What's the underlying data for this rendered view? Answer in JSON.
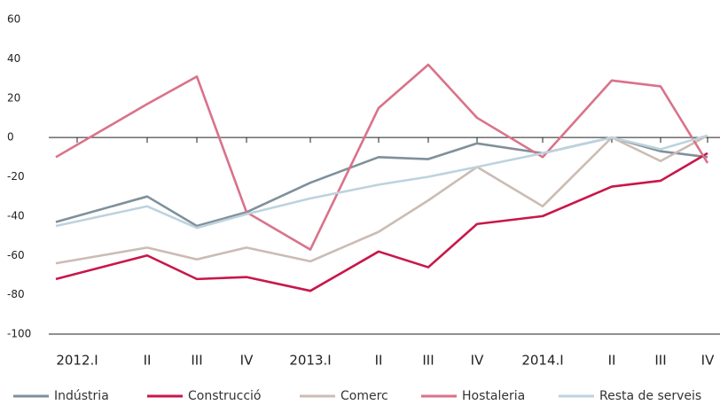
{
  "chart_data": {
    "type": "line",
    "categories": [
      "2012.I",
      "II",
      "III",
      "IV",
      "2013.I",
      "II",
      "III",
      "IV",
      "2014.I",
      "II",
      "III",
      "IV"
    ],
    "series": [
      {
        "name": "Indústria",
        "color": "#7f909b",
        "values": [
          -43,
          -30,
          -45,
          -38,
          -23,
          -10,
          -11,
          -3,
          -8,
          0,
          -7,
          -10
        ]
      },
      {
        "name": "Construcció",
        "color": "#c8174a",
        "values": [
          -72,
          -60,
          -72,
          -71,
          -78,
          -58,
          -66,
          -44,
          -40,
          -25,
          -22,
          -8
        ]
      },
      {
        "name": "Comerc",
        "color": "#cbbcb4",
        "values": [
          -64,
          -56,
          -62,
          -56,
          -63,
          -48,
          -32,
          -15,
          -35,
          0,
          -12,
          1
        ]
      },
      {
        "name": "Hostaleria",
        "color": "#d9728a",
        "values": [
          -10,
          17,
          31,
          -38,
          -57,
          15,
          37,
          10,
          -10,
          29,
          26,
          -13
        ]
      },
      {
        "name": "Resta de serveis",
        "color": "#bdd3de",
        "values": [
          -45,
          -35,
          -46,
          -39,
          -31,
          -24,
          -20,
          -15,
          -8,
          0,
          -6,
          1
        ]
      }
    ],
    "ylim": [
      -100,
      60
    ],
    "yticks": [
      -100,
      -80,
      -60,
      -40,
      -20,
      0,
      20,
      40,
      60
    ]
  }
}
